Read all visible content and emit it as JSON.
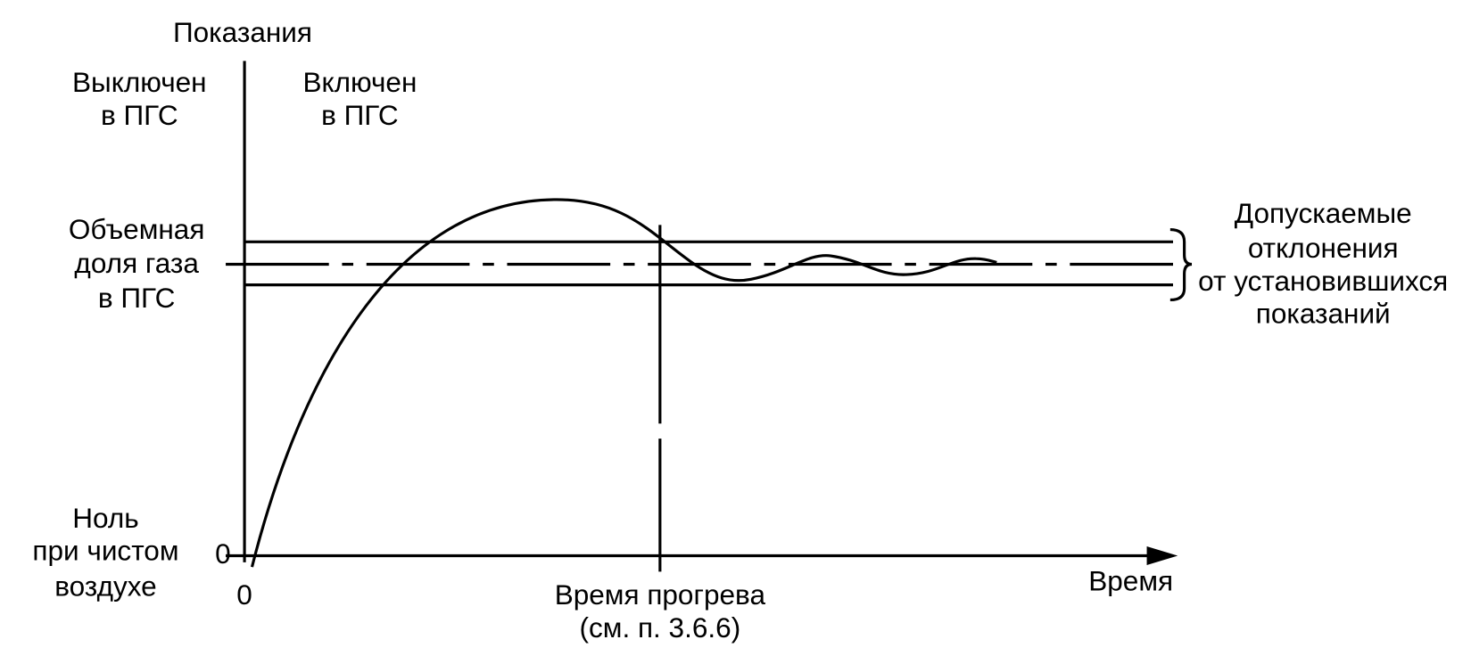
{
  "axis": {
    "y_title": "Показания",
    "x_title": "Время",
    "y_zero": "0",
    "x_zero": "0"
  },
  "regions": {
    "off": [
      "Выключен",
      "в ПГС"
    ],
    "on": [
      "Включен",
      "в ПГС"
    ]
  },
  "levels": {
    "gas": [
      "Объемная",
      "доля газа",
      "в ПГС"
    ],
    "zero": [
      "Ноль",
      "при чистом",
      "воздухе"
    ]
  },
  "tolerance": [
    "Допускаемые",
    "отклонения",
    "от установившихся",
    "показаний"
  ],
  "warmup": [
    "Время прогрева",
    "(см. п. 3.6.6)"
  ]
}
